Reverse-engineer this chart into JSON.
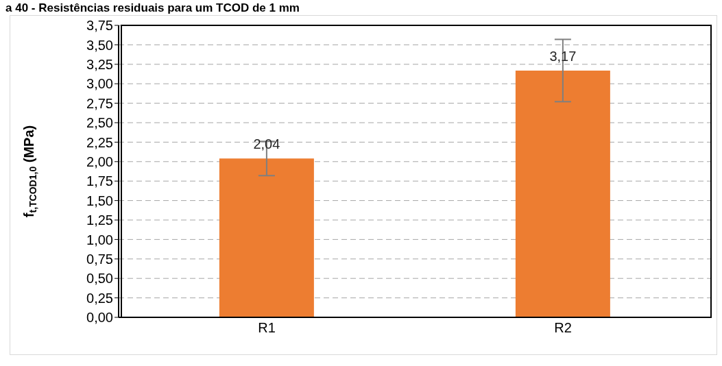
{
  "chart_data": {
    "type": "bar",
    "title": "a 40 - Resistências residuais para um TCOD de 1 mm",
    "ylabel": "f$_{t,TCOD1,0}$ (MPa)",
    "categories": [
      "R1",
      "R2"
    ],
    "values": [
      2.04,
      3.17
    ],
    "errors": [
      0.22,
      0.4
    ],
    "value_labels": [
      "2,04",
      "3,17"
    ],
    "color": "#ed7d31",
    "ylim": [
      0,
      3.75
    ],
    "yticks": [
      {
        "value": 0,
        "label": "0,00"
      },
      {
        "value": 0.25,
        "label": "0,25"
      },
      {
        "value": 0.5,
        "label": "0,50"
      },
      {
        "value": 0.75,
        "label": "0,75"
      },
      {
        "value": 1,
        "label": "1,00"
      },
      {
        "value": 1.25,
        "label": "1,25"
      },
      {
        "value": 1.5,
        "label": "1,50"
      },
      {
        "value": 1.75,
        "label": "1,75"
      },
      {
        "value": 2,
        "label": "2,00"
      },
      {
        "value": 2.25,
        "label": "2,25"
      },
      {
        "value": 2.5,
        "label": "2,50"
      },
      {
        "value": 2.75,
        "label": "2,75"
      },
      {
        "value": 3,
        "label": "3,00"
      },
      {
        "value": 3.25,
        "label": "3,25"
      },
      {
        "value": 3.5,
        "label": "3,50"
      },
      {
        "value": 3.75,
        "label": "3,75"
      }
    ],
    "grid": "y",
    "legend": false
  }
}
